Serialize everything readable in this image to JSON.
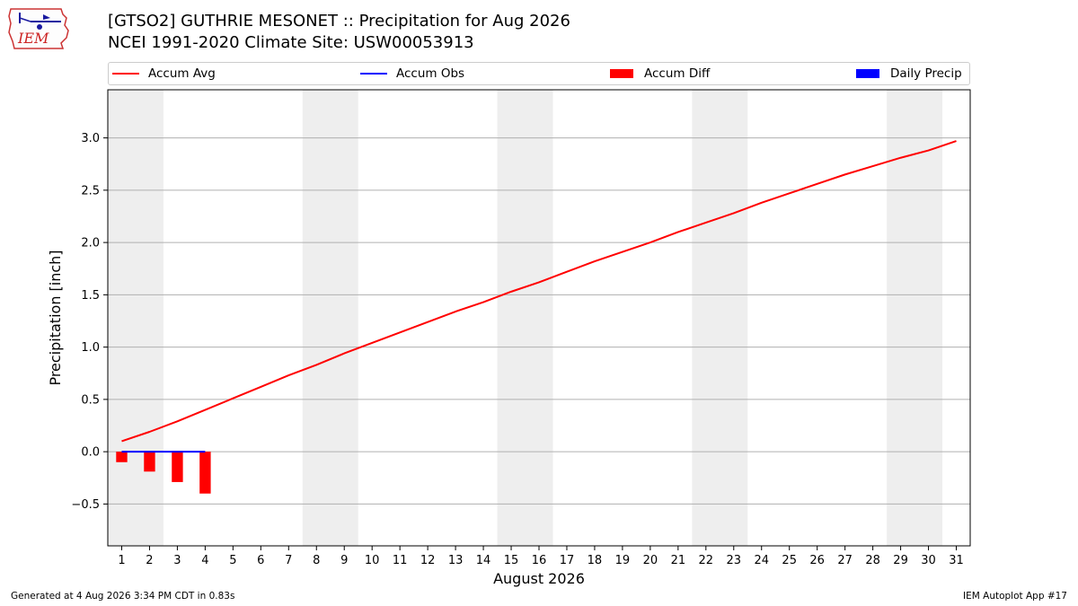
{
  "header": {
    "title_line1": "[GTSO2] GUTHRIE MESONET :: Precipitation for Aug 2026",
    "title_line2": "NCEI 1991-2020 Climate Site: USW00053913"
  },
  "logo": {
    "text": "IEM"
  },
  "footer": {
    "left": "Generated at 4 Aug 2026 3:34 PM CDT in 0.83s",
    "right": "IEM Autoplot App #17"
  },
  "colors": {
    "accum_avg": "#ff0000",
    "accum_obs": "#0000ff",
    "accum_diff": "#ff0000",
    "daily_precip": "#0000ff",
    "weekend_shade": "#eeeeee",
    "grid": "#b0b0b0"
  },
  "chart_data": {
    "type": "line",
    "xlabel": "August 2026",
    "ylabel": "Precipitation [inch]",
    "x_ticks": [
      1,
      2,
      3,
      4,
      5,
      6,
      7,
      8,
      9,
      10,
      11,
      12,
      13,
      14,
      15,
      16,
      17,
      18,
      19,
      20,
      21,
      22,
      23,
      24,
      25,
      26,
      27,
      28,
      29,
      30,
      31
    ],
    "y_ticks": [
      -0.5,
      0.0,
      0.5,
      1.0,
      1.5,
      2.0,
      2.5,
      3.0
    ],
    "y_tick_labels": [
      "−0.5",
      "0.0",
      "0.5",
      "1.0",
      "1.5",
      "2.0",
      "2.5",
      "3.0"
    ],
    "xlim": [
      0.5,
      31.5
    ],
    "ylim": [
      -0.9,
      3.46
    ],
    "grid": "horizontal",
    "legend_position": "top",
    "weekend_shading": [
      [
        0.5,
        2.5
      ],
      [
        7.5,
        9.5
      ],
      [
        14.5,
        16.5
      ],
      [
        21.5,
        23.5
      ],
      [
        28.5,
        30.5
      ]
    ],
    "series": [
      {
        "name": "Accum Avg",
        "kind": "line",
        "days": [
          1,
          2,
          3,
          4,
          5,
          6,
          7,
          8,
          9,
          10,
          11,
          12,
          13,
          14,
          15,
          16,
          17,
          18,
          19,
          20,
          21,
          22,
          23,
          24,
          25,
          26,
          27,
          28,
          29,
          30,
          31
        ],
        "values": [
          0.1,
          0.19,
          0.29,
          0.4,
          0.51,
          0.62,
          0.73,
          0.83,
          0.94,
          1.04,
          1.14,
          1.24,
          1.34,
          1.43,
          1.53,
          1.62,
          1.72,
          1.82,
          1.91,
          2.0,
          2.1,
          2.19,
          2.28,
          2.38,
          2.47,
          2.56,
          2.65,
          2.73,
          2.81,
          2.88,
          2.97
        ]
      },
      {
        "name": "Accum Obs",
        "kind": "line",
        "days": [
          1,
          2,
          3,
          4
        ],
        "values": [
          0.0,
          0.0,
          0.0,
          0.0
        ]
      },
      {
        "name": "Accum Diff",
        "kind": "bar",
        "days": [
          1,
          2,
          3,
          4
        ],
        "values": [
          -0.1,
          -0.19,
          -0.29,
          -0.4
        ]
      },
      {
        "name": "Daily Precip",
        "kind": "bar",
        "days": [
          1,
          2,
          3,
          4
        ],
        "values": [
          0.0,
          0.0,
          0.0,
          0.0
        ]
      }
    ]
  }
}
